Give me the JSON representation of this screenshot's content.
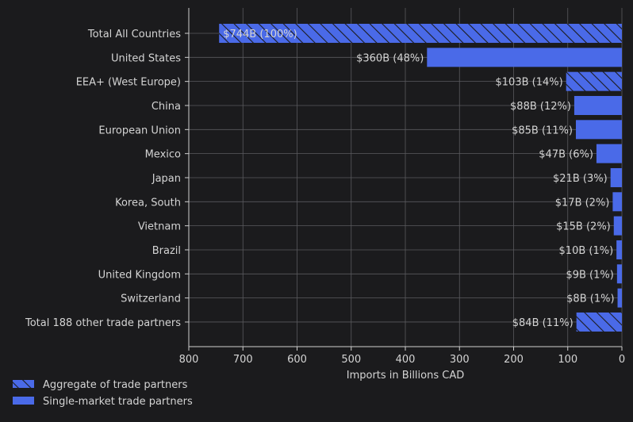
{
  "chart_data": {
    "type": "bar",
    "orientation": "horizontal",
    "x_direction": "reversed",
    "xlabel": "Imports in Billions CAD",
    "xlim": [
      800,
      0
    ],
    "xticks": [
      800,
      700,
      600,
      500,
      400,
      300,
      200,
      100,
      0
    ],
    "grid": true,
    "legend_position": "bottom-left",
    "legend": [
      {
        "label": "Aggregate of trade partners",
        "pattern": "hatched"
      },
      {
        "label": "Single-market trade partners",
        "pattern": "solid"
      }
    ],
    "bar_color": "#4a6ae8",
    "hatch_color": "#1b1b1d",
    "categories": [
      "Total All Countries",
      "United States",
      "EEA+ (West Europe)",
      "China",
      "European Union",
      "Mexico",
      "Japan",
      "Korea, South",
      "Vietnam",
      "Brazil",
      "United Kingdom",
      "Switzerland",
      "Total 188 other trade partners"
    ],
    "values": [
      744,
      360,
      103,
      88,
      85,
      47,
      21,
      17,
      15,
      10,
      9,
      8,
      84
    ],
    "aggregate": [
      true,
      false,
      true,
      false,
      false,
      false,
      false,
      false,
      false,
      false,
      false,
      false,
      true
    ],
    "data_labels": [
      "$744B (100%)",
      "$360B (48%)",
      "$103B (14%)",
      "$88B (12%)",
      "$85B (11%)",
      "$47B (6%)",
      "$21B (3%)",
      "$17B (2%)",
      "$15B (2%)",
      "$10B (1%)",
      "$9B (1%)",
      "$8B (1%)",
      "$84B (11%)"
    ]
  },
  "colors": {
    "background": "#1b1b1d",
    "text": "#d4d4d4",
    "grid": "#5a5a5e",
    "axis": "#cfcfcf"
  }
}
